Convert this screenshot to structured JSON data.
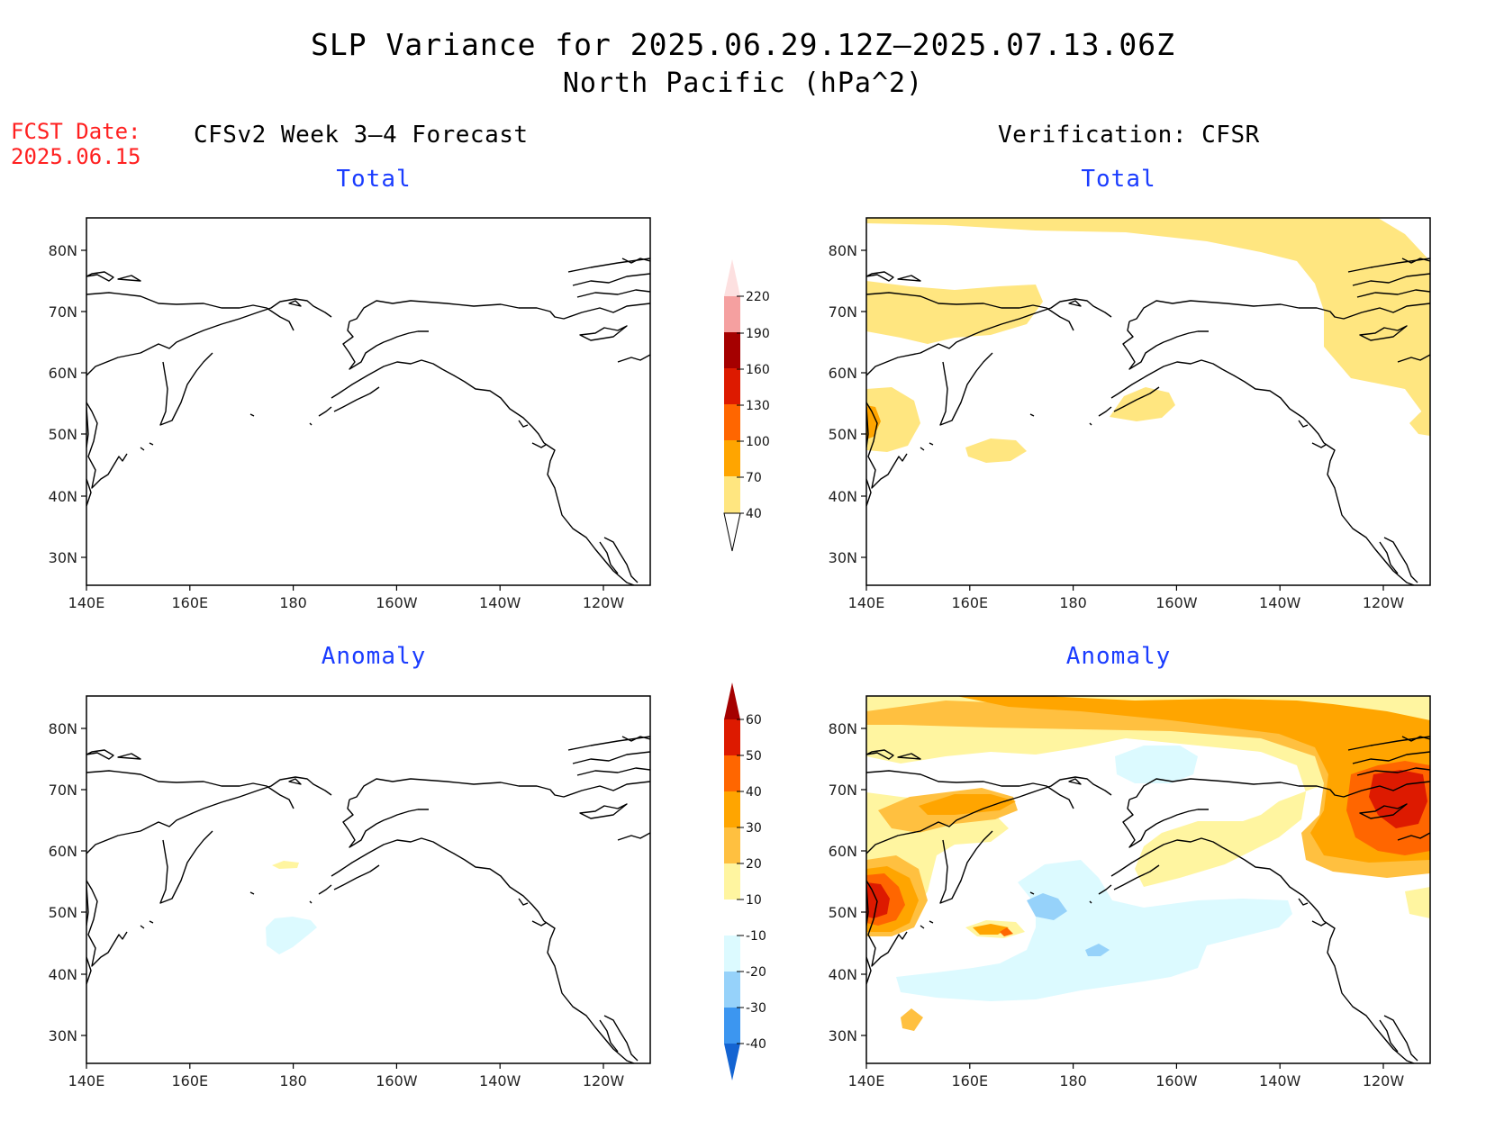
{
  "title": "SLP Variance for 2025.06.29.12Z—2025.07.13.06Z",
  "subtitle": "North Pacific (hPa^2)",
  "fcst_label": "FCST Date:",
  "fcst_date": "2025.06.15",
  "left_column": "CFSv2 Week 3—4 Forecast",
  "right_column": "Verification: CFSR",
  "panels": {
    "tl": "Total",
    "tr": "Total",
    "bl": "Anomaly",
    "br": "Anomaly"
  },
  "lon_ticks": [
    "140E",
    "160E",
    "180",
    "160W",
    "140W",
    "120W"
  ],
  "lat_ticks": [
    "80N",
    "70N",
    "60N",
    "50N",
    "40N",
    "30N"
  ],
  "colorbar_total": {
    "levels": [
      "40",
      "70",
      "100",
      "130",
      "160",
      "190",
      "220"
    ],
    "colors": [
      "#ffe680",
      "#ffa500",
      "#ff6600",
      "#dd1a00",
      "#a50000",
      "#f5a0a0",
      "#fde0e0"
    ]
  },
  "colorbar_anom": {
    "levels": [
      "60",
      "50",
      "40",
      "30",
      "20",
      "10",
      "-10",
      "-20",
      "-30",
      "-40"
    ],
    "colors_top": [
      "#a50000",
      "#dd1a00",
      "#ff6600",
      "#ffa500",
      "#ffc040",
      "#fff5a0"
    ],
    "color_mid": "#ffffff",
    "colors_bottom": [
      "#dcfaff",
      "#96d2fa",
      "#3c96f0",
      "#1464d2"
    ]
  },
  "chart_data": [
    {
      "type": "heatmap",
      "panel": "CFSv2 Week 3—4 Forecast Total",
      "note": "no shading above 40"
    },
    {
      "type": "heatmap",
      "panel": "Verification: CFSR Total"
    },
    {
      "type": "heatmap",
      "panel": "CFSv2 Week 3—4 Forecast Anomaly"
    },
    {
      "type": "heatmap",
      "panel": "Verification: CFSR Anomaly"
    }
  ]
}
